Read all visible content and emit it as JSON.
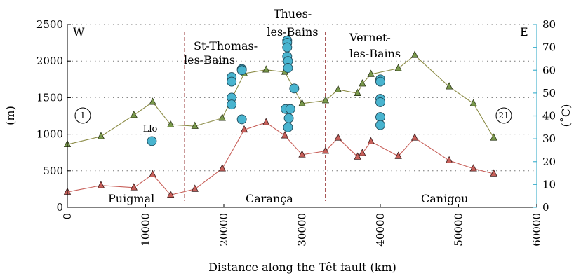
{
  "chart_data": {
    "type": "line",
    "xlabel": "Distance along the Têt fault (km)",
    "ylabel": "(m)",
    "y2label": "(˚C)",
    "xlim": [
      0,
      60000
    ],
    "ylim": [
      0,
      2500
    ],
    "y2lim": [
      0,
      80
    ],
    "xticks": [
      0,
      10000,
      20000,
      30000,
      40000,
      50000,
      60000
    ],
    "yticks": [
      0,
      500,
      1000,
      1500,
      2000,
      2500
    ],
    "y2ticks": [
      0,
      10,
      20,
      30,
      40,
      50,
      60,
      70,
      80
    ],
    "grid": "horizontal dotted",
    "colors": {
      "upper_line": "#8b8b45",
      "upper_marker": "#7a9a4c",
      "lower_line": "#c8605a",
      "lower_marker": "#c8605a",
      "spring_marker": "#49b4cf",
      "right_axis": "#49b4cf",
      "fault_line": "#8b2020"
    },
    "series": [
      {
        "kind": "upper-profile",
        "points": [
          [
            0,
            860
          ],
          [
            4300,
            970
          ],
          [
            8500,
            1260
          ],
          [
            10900,
            1440
          ],
          [
            13200,
            1130
          ],
          [
            16300,
            1110
          ],
          [
            19800,
            1220
          ],
          [
            22600,
            1830
          ],
          [
            25400,
            1880
          ],
          [
            27800,
            1850
          ],
          [
            30000,
            1420
          ],
          [
            33000,
            1460
          ],
          [
            34600,
            1610
          ],
          [
            37100,
            1560
          ],
          [
            37700,
            1690
          ],
          [
            38800,
            1820
          ],
          [
            42300,
            1900
          ],
          [
            44400,
            2080
          ],
          [
            48800,
            1650
          ],
          [
            51900,
            1420
          ],
          [
            54500,
            950
          ]
        ]
      },
      {
        "kind": "lower-profile",
        "points": [
          [
            0,
            210
          ],
          [
            4300,
            300
          ],
          [
            8500,
            270
          ],
          [
            10900,
            450
          ],
          [
            13200,
            170
          ],
          [
            16300,
            250
          ],
          [
            19800,
            530
          ],
          [
            22600,
            1060
          ],
          [
            25400,
            1160
          ],
          [
            27800,
            980
          ],
          [
            30000,
            720
          ],
          [
            33000,
            770
          ],
          [
            34600,
            950
          ],
          [
            37100,
            690
          ],
          [
            37700,
            740
          ],
          [
            38800,
            900
          ],
          [
            42300,
            700
          ],
          [
            44400,
            950
          ],
          [
            48800,
            640
          ],
          [
            51900,
            530
          ],
          [
            54500,
            460
          ]
        ]
      },
      {
        "kind": "spring-temperatures",
        "axis": "right",
        "points": [
          [
            10800,
            29
          ],
          [
            21000,
            57
          ],
          [
            21000,
            55
          ],
          [
            21000,
            48
          ],
          [
            21000,
            45
          ],
          [
            22300,
            38.5
          ],
          [
            22300,
            60.5
          ],
          [
            22300,
            60
          ],
          [
            27900,
            43
          ],
          [
            28100,
            73
          ],
          [
            28100,
            72
          ],
          [
            28100,
            70
          ],
          [
            28100,
            66
          ],
          [
            28200,
            64
          ],
          [
            28200,
            61
          ],
          [
            28500,
            43
          ],
          [
            28300,
            39
          ],
          [
            28200,
            35
          ],
          [
            29000,
            52
          ],
          [
            40000,
            56
          ],
          [
            40000,
            55
          ],
          [
            40000,
            47.5
          ],
          [
            40000,
            46
          ],
          [
            40000,
            39.5
          ],
          [
            40000,
            36
          ]
        ]
      }
    ],
    "fault_lines_x": [
      15000,
      33000
    ],
    "annotations": {
      "west": "W",
      "east": "E",
      "start_marker": "1",
      "end_marker": "21",
      "llo": "Llo",
      "st_thomas": [
        "St-Thomas-",
        "les-Bains"
      ],
      "thues": [
        "Thues-",
        "les-Bains"
      ],
      "vernet": [
        "Vernet-",
        "les-Bains"
      ],
      "puigmal": "Puigmal",
      "caranca": "Carança",
      "canigou": "Canigou"
    }
  }
}
